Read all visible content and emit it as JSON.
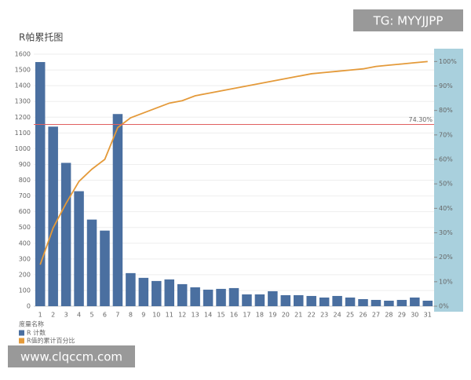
{
  "chart_data": {
    "type": "pareto",
    "title": "R帕累托图",
    "categories": [
      "1",
      "2",
      "3",
      "4",
      "5",
      "6",
      "7",
      "8",
      "9",
      "10",
      "11",
      "12",
      "13",
      "14",
      "15",
      "16",
      "17",
      "18",
      "19",
      "20",
      "21",
      "22",
      "23",
      "24",
      "25",
      "26",
      "27",
      "28",
      "29",
      "30",
      "31"
    ],
    "series": [
      {
        "name": "R 计数",
        "color": "#4a6fa0",
        "values": [
          1550,
          1140,
          910,
          730,
          550,
          480,
          1220,
          210,
          180,
          160,
          170,
          140,
          120,
          105,
          110,
          115,
          75,
          75,
          95,
          70,
          70,
          65,
          55,
          65,
          55,
          45,
          40,
          35,
          40,
          55,
          35
        ]
      },
      {
        "name": "R值的累计百分比",
        "color": "#e49a3a",
        "axis": "y2",
        "values": [
          17,
          32,
          42,
          51,
          56,
          60,
          73,
          77,
          79,
          81,
          83,
          84,
          86,
          87,
          88,
          89,
          90,
          91,
          92,
          93,
          94,
          95,
          95.5,
          96,
          96.5,
          97,
          98,
          98.5,
          99,
          99.5,
          100
        ]
      }
    ],
    "legend_title": "度量名称",
    "ylim": [
      0,
      1600
    ],
    "yticks": [
      0,
      100,
      200,
      300,
      400,
      500,
      600,
      700,
      800,
      900,
      1000,
      1100,
      1200,
      1300,
      1400,
      1500,
      1600
    ],
    "y2lim": [
      0,
      103
    ],
    "y2ticks": [
      {
        "value": 0,
        "label": "0%"
      },
      {
        "value": 10,
        "label": "10%"
      },
      {
        "value": 20,
        "label": "20%"
      },
      {
        "value": 30,
        "label": "30%"
      },
      {
        "value": 40,
        "label": "40%"
      },
      {
        "value": 50,
        "label": "50%"
      },
      {
        "value": 60,
        "label": "60%"
      },
      {
        "value": 70,
        "label": "70%"
      },
      {
        "value": 80,
        "label": "80%"
      },
      {
        "value": 90,
        "label": "90%"
      },
      {
        "value": 100,
        "label": "100%"
      }
    ],
    "reference_line": {
      "value": 74.3,
      "label": "74.30%",
      "color": "#e06060"
    },
    "grid": true
  },
  "watermarks": [
    "TG: MYYJJPP",
    "www.clqccm.com"
  ]
}
